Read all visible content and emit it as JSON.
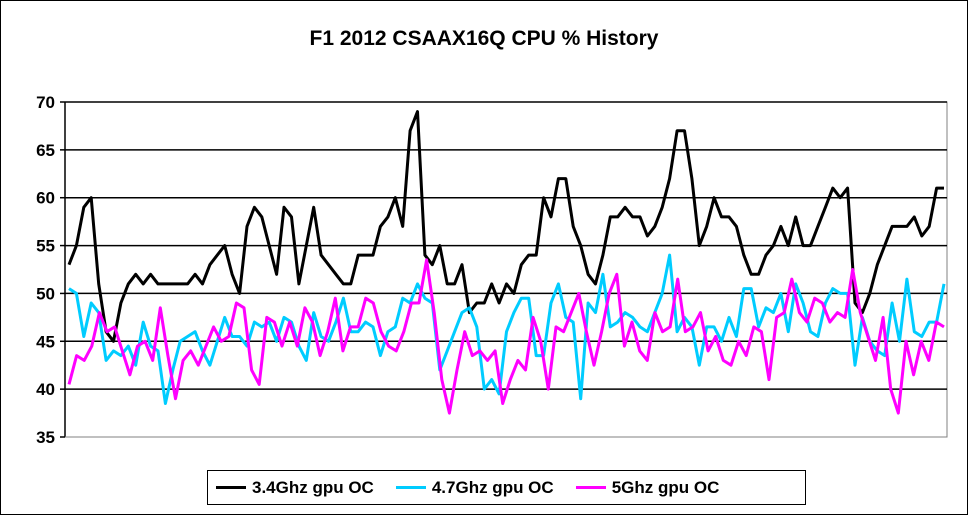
{
  "chart_data": {
    "type": "line",
    "title": "F1 2012 CSAAX16Q CPU % History",
    "xlabel": "",
    "ylabel": "",
    "ylim": [
      35,
      70
    ],
    "yticks": [
      "35",
      "40",
      "45",
      "50",
      "55",
      "60",
      "65",
      "70"
    ],
    "grid": true,
    "legend_position": "bottom",
    "series": [
      {
        "name": "3.4Ghz gpu OC",
        "color": "#000000",
        "values": [
          53,
          55,
          59,
          60,
          51,
          46,
          45,
          49,
          51,
          52,
          51,
          52,
          51,
          51,
          51,
          51,
          51,
          52,
          51,
          53,
          54,
          55,
          52,
          50,
          57,
          59,
          58,
          55,
          52,
          59,
          58,
          51,
          55,
          59,
          54,
          53,
          52,
          51,
          51,
          54,
          54,
          54,
          57,
          58,
          60,
          57,
          67,
          69,
          54,
          53,
          55,
          51,
          51,
          53,
          48,
          49,
          49,
          51,
          49,
          51,
          50,
          53,
          54,
          54,
          60,
          58,
          62,
          62,
          57,
          55,
          52,
          51,
          54,
          58,
          58,
          59,
          58,
          58,
          56,
          57,
          59,
          62,
          67,
          67,
          62,
          55,
          57,
          60,
          58,
          58,
          57,
          54,
          52,
          52,
          54,
          55,
          57,
          55,
          58,
          55,
          55,
          57,
          59,
          61,
          60,
          61,
          49,
          48,
          50,
          53,
          55,
          57,
          57,
          57,
          58,
          56,
          57,
          61,
          61
        ]
      },
      {
        "name": "4.7Ghz gpu OC",
        "color": "#00CCFF",
        "values": [
          50.5,
          50,
          45.5,
          49,
          48,
          43,
          44,
          43.5,
          44.5,
          42.5,
          47,
          44.5,
          44,
          38.5,
          42,
          45,
          45.5,
          46,
          44,
          42.5,
          45,
          47.5,
          45.5,
          45.5,
          44.5,
          47,
          46.5,
          47,
          45,
          47.5,
          47,
          44.5,
          43,
          48,
          45.5,
          45,
          47,
          49.5,
          46,
          46,
          47,
          46.5,
          43.5,
          46,
          46.5,
          49.5,
          49,
          51,
          49.5,
          49,
          42,
          44,
          46,
          48,
          48.5,
          46.5,
          40,
          41,
          39.5,
          46,
          48,
          49.5,
          49.5,
          43.5,
          43.5,
          49,
          51,
          47.5,
          47,
          39,
          49,
          48,
          52,
          46.5,
          47,
          48,
          47.5,
          46.5,
          46,
          48,
          50,
          54,
          46,
          47.5,
          46.5,
          42.5,
          46.5,
          46.5,
          45,
          47.5,
          45.5,
          50.5,
          50.5,
          46.5,
          48.5,
          48,
          50,
          46,
          51,
          49,
          46,
          45.5,
          49,
          50.5,
          50,
          50,
          42.5,
          47.5,
          45,
          44,
          43.5,
          49,
          45,
          51.5,
          46,
          45.5,
          47,
          47,
          51
        ]
      },
      {
        "name": "5Ghz gpu OC",
        "color": "#FF00FF",
        "values": [
          40.5,
          43.5,
          43,
          44.5,
          48,
          46,
          46.5,
          44,
          41.5,
          44.5,
          45,
          43,
          48.5,
          43.5,
          39,
          43,
          44,
          42.5,
          44.5,
          46.5,
          45,
          45.5,
          49,
          48.5,
          42,
          40.5,
          47.5,
          47,
          44.5,
          47,
          44.5,
          48.5,
          47,
          43.5,
          46,
          49.5,
          44,
          46.5,
          46.5,
          49.5,
          49,
          46,
          44.5,
          44,
          46,
          49,
          49,
          53.5,
          48,
          41,
          37.5,
          42,
          46,
          43.5,
          44,
          43,
          44,
          38.5,
          41,
          43,
          42,
          47.5,
          45,
          40,
          46.5,
          46,
          48,
          50,
          46,
          42.5,
          46,
          50,
          52,
          44.5,
          47,
          44,
          43,
          48,
          46,
          46.5,
          51.5,
          46,
          46.5,
          48,
          44,
          45.5,
          43,
          42.5,
          45,
          43.5,
          46.5,
          46,
          41,
          47.5,
          48,
          51.5,
          48,
          47,
          49.5,
          49,
          47,
          48,
          47.5,
          52.5,
          48,
          45.5,
          43,
          47.5,
          40,
          37.5,
          45,
          41.5,
          45,
          43,
          47,
          46.5
        ]
      }
    ]
  }
}
